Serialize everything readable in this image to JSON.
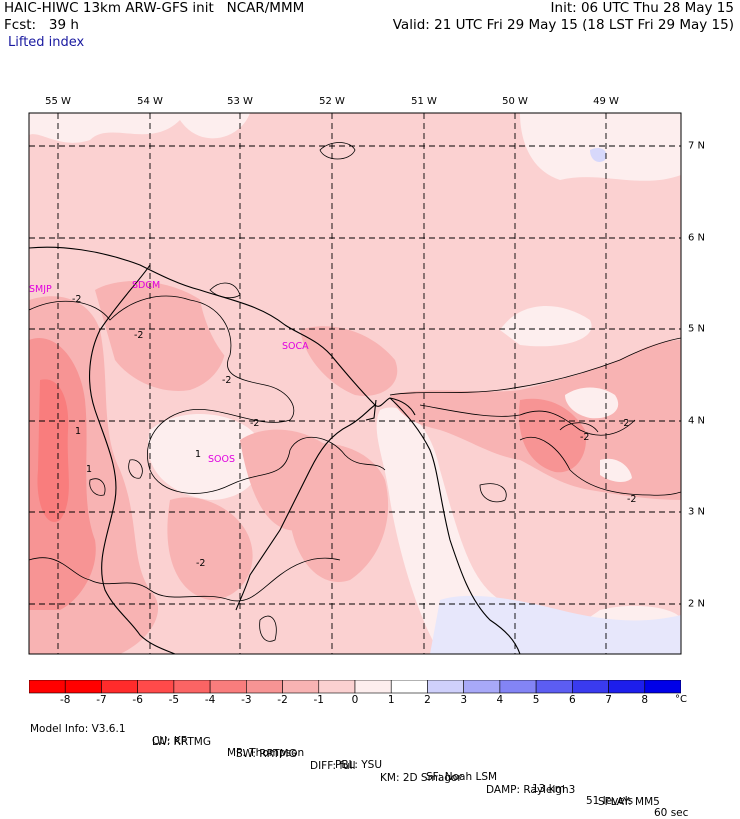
{
  "header": {
    "model_line": "HAIC-HIWC 13km ARW-GFS init   NCAR/MMM",
    "fcst_line": "Fcst:   39 h",
    "field": "Lifted index",
    "init_line": "Init: 06 UTC Thu 28 May 15",
    "valid_line": "Valid: 21 UTC Fri 29 May 15 (18 LST Fri 29 May 15)"
  },
  "map": {
    "lon_labels": [
      "55 W",
      "54 W",
      "53 W",
      "52 W",
      "51 W",
      "50 W",
      "49 W"
    ],
    "lat_labels": [
      "7 N",
      "6 N",
      "5 N",
      "4 N",
      "3 N",
      "2 N"
    ],
    "stations": [
      "SMJP",
      "SOCA",
      "SDCM",
      "SOOS"
    ],
    "contour_labels": [
      "-2",
      "-2",
      "-2",
      "-2",
      "-2",
      "-2",
      "-2",
      "-2",
      "1",
      "1",
      "1"
    ]
  },
  "colorbar": {
    "ticks": [
      "-8",
      "-7",
      "-6",
      "-5",
      "-4",
      "-3",
      "-2",
      "-1",
      "0",
      "1",
      "2",
      "3",
      "4",
      "5",
      "6",
      "7",
      "8"
    ],
    "colors": [
      "#ff0000",
      "#ff2b2b",
      "#ff4a4a",
      "#fb6464",
      "#f97d7d",
      "#f79494",
      "#f8b3b3",
      "#fbd1d1",
      "#fdeeee",
      "#ffffff",
      "#cfd0fb",
      "#a8a9f8",
      "#8384f5",
      "#5c5df2",
      "#3a3bef",
      "#1d1eec",
      "#0000e8"
    ],
    "unit": "°C"
  },
  "footer": {
    "row1": [
      "Model Info: V3.6.1",
      "CU: KF",
      "MP: Thompson",
      "PBL: YSU",
      "SF: Noah LSM",
      "13 km",
      "51 levels",
      "60 sec"
    ],
    "row2": [
      "LW: RRTMG",
      "SW: RRTMG",
      "DIFF: full",
      "KM: 2D Smagor",
      "DAMP: Rayleigh3",
      "SFLAY: MM5"
    ]
  }
}
